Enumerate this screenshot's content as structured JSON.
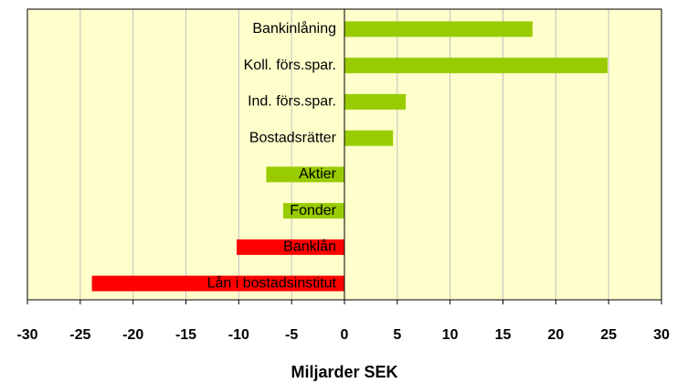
{
  "chart_data": {
    "type": "hbar",
    "x_label": "Miljarder SEK",
    "categories": [
      "Bankinlåning",
      "Koll. förs.spar.",
      "Ind. förs.spar.",
      "Bostadsrätter",
      "Aktier",
      "Fonder",
      "Banklån",
      "Lån i bostadsinstitut"
    ],
    "values": [
      17.8,
      24.9,
      5.8,
      4.6,
      -7.4,
      -5.8,
      -10.2,
      -23.9
    ],
    "colors": [
      "#99cc00",
      "#99cc00",
      "#99cc00",
      "#99cc00",
      "#99cc00",
      "#99cc00",
      "#ff0000",
      "#ff0000"
    ],
    "xlim": [
      -30,
      30
    ],
    "xticks": [
      -30,
      -25,
      -20,
      -15,
      -10,
      -5,
      0,
      5,
      10,
      15,
      20,
      25,
      30
    ],
    "grid": true,
    "background": "#ffffcc"
  }
}
